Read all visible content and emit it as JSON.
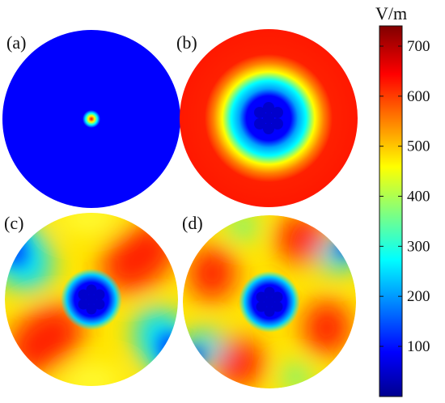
{
  "figure": {
    "panels": [
      {
        "label": "(a)",
        "pattern": "center-spot"
      },
      {
        "label": "(b)",
        "pattern": "annular-ring"
      },
      {
        "label": "(c)",
        "pattern": "two-lobe-diagonal"
      },
      {
        "label": "(d)",
        "pattern": "four-lobe"
      }
    ],
    "colorbar": {
      "unit": "V/m",
      "ticks": [
        "100",
        "200",
        "300",
        "400",
        "500",
        "600",
        "700"
      ],
      "colormap": "jet",
      "colors": [
        "#00008f",
        "#0000ff",
        "#00ffff",
        "#ffff00",
        "#ff0000",
        "#800000"
      ]
    }
  }
}
